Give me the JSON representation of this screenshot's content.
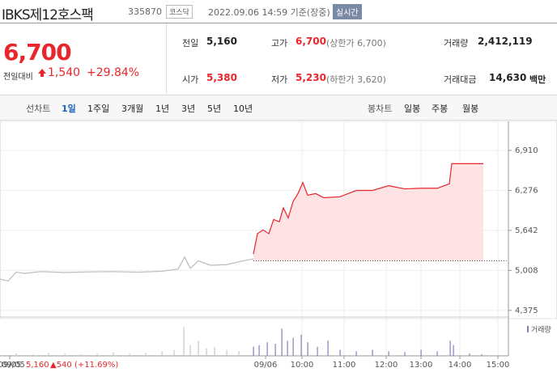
{
  "header": {
    "name": "IBKS제12호스팩",
    "code": "335870",
    "market": "코스닥",
    "time": "2022.09.06 14:59 기준(장중)",
    "realtime": "실시간"
  },
  "quote": {
    "price": "6,700",
    "change_label": "전일대비",
    "change": "1,540",
    "change_rate": "+29.84%"
  },
  "info": [
    {
      "label": "전일",
      "value": "5,160"
    },
    {
      "label": "고가",
      "value": "6,700",
      "note": "(상한가 6,700)"
    },
    {
      "label": "거래량",
      "value": "2,412,119"
    },
    {
      "label": "시가",
      "value": "5,380"
    },
    {
      "label": "저가",
      "value": "5,230",
      "note": "(하한가 3,620)"
    },
    {
      "label": "거래대금",
      "value": "14,630",
      "unit": "백만"
    }
  ],
  "tabs": {
    "line_label": "선차트",
    "periods": [
      "1일",
      "1주일",
      "3개월",
      "1년",
      "3년",
      "5년",
      "10년"
    ],
    "selected": 0,
    "candle_label": "봉차트",
    "candles": [
      "일봉",
      "주봉",
      "월봉"
    ]
  },
  "chart_data": {
    "type": "line",
    "xlim": [
      0,
      628
    ],
    "ylim": [
      4270,
      7345
    ],
    "xticks": [
      {
        "value": 12,
        "label": "09/05"
      },
      {
        "value": 328,
        "label": "09/06"
      },
      {
        "value": 373,
        "label": "10:00"
      },
      {
        "value": 425,
        "label": "11:00"
      },
      {
        "value": 477,
        "label": "12:00"
      },
      {
        "value": 520,
        "label": "13:00"
      },
      {
        "value": 568,
        "label": "14:00"
      },
      {
        "value": 615,
        "label": "15:00"
      }
    ],
    "yticks": [
      {
        "value": 6910,
        "label": "6,910"
      },
      {
        "value": 6276,
        "label": "6,276"
      },
      {
        "value": 5642,
        "label": "5,642"
      },
      {
        "value": 5008,
        "label": "5,008"
      },
      {
        "value": 4375,
        "label": "4,375"
      }
    ],
    "baseline": 5160,
    "grid": true,
    "series": [
      {
        "color": "#bbbbbb",
        "x": [
          0,
          10,
          20,
          30,
          50,
          80,
          110,
          140,
          170,
          200,
          220,
          228,
          235,
          245,
          260,
          280,
          300,
          313
        ],
        "values": [
          4870,
          4840,
          4980,
          4960,
          4990,
          4975,
          4985,
          4990,
          4980,
          4995,
          5030,
          5220,
          5040,
          5160,
          5090,
          5100,
          5160,
          5190
        ]
      },
      {
        "color": "#e8262b",
        "fill": "#fde3e4",
        "x": [
          313,
          318,
          325,
          332,
          338,
          345,
          350,
          356,
          362,
          368,
          374,
          380,
          390,
          400,
          420,
          440,
          460,
          480,
          500,
          520,
          540,
          555,
          558,
          597
        ],
        "values": [
          5270,
          5590,
          5650,
          5590,
          5815,
          5780,
          6000,
          5840,
          6100,
          6225,
          6400,
          6200,
          6225,
          6160,
          6175,
          6275,
          6275,
          6350,
          6300,
          6310,
          6310,
          6380,
          6700,
          6700
        ]
      }
    ],
    "volume": {
      "label": "거래량",
      "vlim": [
        0,
        45
      ],
      "series": [
        {
          "color": "#c8c8c8",
          "x": [
            20,
            40,
            60,
            80,
            100,
            120,
            140,
            160,
            180,
            200,
            215,
            227,
            235,
            245,
            255,
            265,
            280,
            295
          ],
          "values": [
            3,
            2,
            4,
            3,
            2,
            3,
            5,
            3,
            4,
            6,
            8,
            38,
            14,
            20,
            10,
            12,
            8,
            6
          ]
        },
        {
          "color": "#8a7bbf",
          "x": [
            313,
            320,
            330,
            340,
            348,
            355,
            362,
            372,
            380,
            392,
            405,
            420,
            440,
            460,
            480,
            500,
            520,
            540,
            556,
            560,
            580,
            595
          ],
          "values": [
            12,
            14,
            18,
            16,
            36,
            20,
            24,
            28,
            18,
            12,
            20,
            8,
            6,
            8,
            6,
            5,
            8,
            6,
            20,
            14,
            3,
            2
          ]
        }
      ]
    }
  },
  "footer": {
    "date": "09/05",
    "price": "5,160",
    "change": "▲540 (+11.69%)"
  }
}
